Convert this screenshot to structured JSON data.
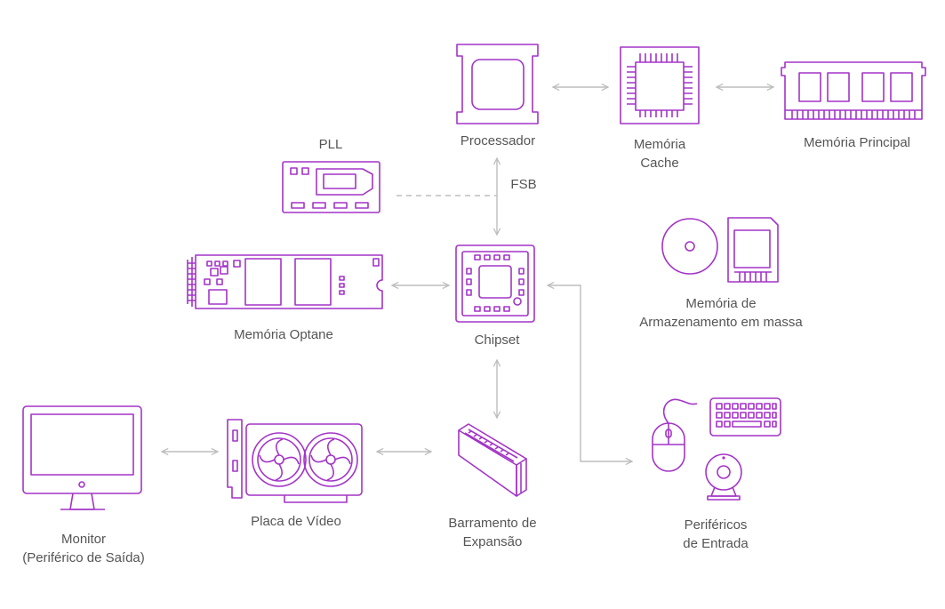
{
  "colors": {
    "accent": "#a334c7",
    "connector": "#bdbdbd",
    "text": "#555555"
  },
  "labels": {
    "processor": "Processador",
    "cache_1": "Memória",
    "cache_2": "Cache",
    "main_memory": "Memória Principal",
    "pll": "PLL",
    "fsb": "FSB",
    "optane": "Memória Optane",
    "chipset": "Chipset",
    "mass_1": "Memória de",
    "mass_2": "Armazenamento em massa",
    "gpu": "Placa de Vídeo",
    "bus_1": "Barramento de",
    "bus_2": "Expansão",
    "input_1": "Periféricos",
    "input_2": "de Entrada",
    "monitor_1": "Monitor",
    "monitor_2": "(Periférico de Saída)"
  },
  "icons": [
    "cpu-icon",
    "cache-chip-icon",
    "ram-module-icon",
    "pll-board-icon",
    "chipset-icon",
    "optane-module-icon",
    "disc-icon",
    "sd-card-icon",
    "gpu-icon",
    "expansion-slot-icon",
    "mouse-icon",
    "keyboard-icon",
    "webcam-icon",
    "monitor-icon"
  ]
}
